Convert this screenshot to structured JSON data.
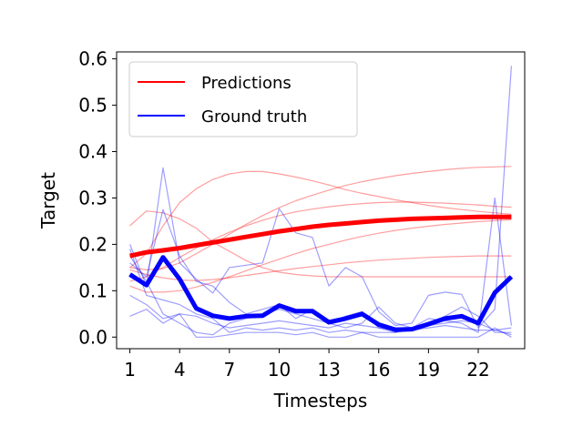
{
  "chart_data": {
    "type": "line",
    "xlabel": "Timesteps",
    "ylabel": "Target",
    "xlim": [
      0.2,
      24.8
    ],
    "ylim": [
      -0.025,
      0.615
    ],
    "xticks": [
      1,
      4,
      7,
      10,
      13,
      16,
      19,
      22
    ],
    "yticks": [
      0.0,
      0.1,
      0.2,
      0.3,
      0.4,
      0.5,
      0.6
    ],
    "ytick_labels": [
      "0.0",
      "0.1",
      "0.2",
      "0.3",
      "0.4",
      "0.5",
      "0.6"
    ],
    "grid": false,
    "legend": {
      "placement": "top-left",
      "entries": [
        {
          "label": "Predictions",
          "color": "#ff0000"
        },
        {
          "label": "Ground truth",
          "color": "#0000ff"
        }
      ]
    },
    "x": [
      1,
      2,
      3,
      4,
      5,
      6,
      7,
      8,
      9,
      10,
      11,
      12,
      13,
      14,
      15,
      16,
      17,
      18,
      19,
      20,
      21,
      22,
      23,
      24
    ],
    "mean_prediction": {
      "legend_group": "Predictions",
      "color": "#ff0000",
      "values": [
        0.175,
        0.183,
        0.187,
        0.192,
        0.198,
        0.204,
        0.21,
        0.216,
        0.222,
        0.228,
        0.233,
        0.238,
        0.242,
        0.245,
        0.248,
        0.251,
        0.253,
        0.255,
        0.256,
        0.257,
        0.258,
        0.259,
        0.259,
        0.259
      ]
    },
    "mean_ground_truth": {
      "legend_group": "Ground truth",
      "color": "#0000ff",
      "values": [
        0.135,
        0.112,
        0.172,
        0.125,
        0.062,
        0.046,
        0.04,
        0.045,
        0.046,
        0.068,
        0.056,
        0.056,
        0.032,
        0.04,
        0.05,
        0.027,
        0.016,
        0.017,
        0.028,
        0.04,
        0.045,
        0.03,
        0.096,
        0.13
      ]
    },
    "prediction_samples": [
      {
        "values": [
          0.24,
          0.272,
          0.268,
          0.255,
          0.235,
          0.205,
          0.185,
          0.165,
          0.15,
          0.14,
          0.135,
          0.132,
          0.13,
          0.13,
          0.13,
          0.13,
          0.13,
          0.13,
          0.13,
          0.13,
          0.13,
          0.13,
          0.13,
          0.13
        ]
      },
      {
        "values": [
          0.15,
          0.18,
          0.24,
          0.29,
          0.32,
          0.34,
          0.352,
          0.357,
          0.357,
          0.352,
          0.345,
          0.337,
          0.328,
          0.318,
          0.31,
          0.303,
          0.296,
          0.29,
          0.284,
          0.279,
          0.275,
          0.271,
          0.268,
          0.265
        ]
      },
      {
        "values": [
          0.15,
          0.145,
          0.148,
          0.16,
          0.18,
          0.2,
          0.222,
          0.243,
          0.262,
          0.279,
          0.294,
          0.306,
          0.317,
          0.327,
          0.335,
          0.342,
          0.348,
          0.353,
          0.357,
          0.361,
          0.364,
          0.366,
          0.367,
          0.368
        ]
      },
      {
        "values": [
          0.12,
          0.13,
          0.15,
          0.172,
          0.192,
          0.21,
          0.226,
          0.24,
          0.252,
          0.262,
          0.27,
          0.276,
          0.281,
          0.285,
          0.288,
          0.29,
          0.291,
          0.291,
          0.29,
          0.289,
          0.287,
          0.285,
          0.282,
          0.28
        ]
      },
      {
        "values": [
          0.11,
          0.097,
          0.097,
          0.1,
          0.108,
          0.118,
          0.13,
          0.143,
          0.156,
          0.168,
          0.18,
          0.191,
          0.2,
          0.209,
          0.217,
          0.224,
          0.23,
          0.235,
          0.239,
          0.243,
          0.246,
          0.249,
          0.251,
          0.253
        ]
      },
      {
        "values": [
          0.145,
          0.135,
          0.128,
          0.123,
          0.122,
          0.124,
          0.128,
          0.133,
          0.138,
          0.143,
          0.148,
          0.152,
          0.156,
          0.16,
          0.163,
          0.166,
          0.168,
          0.17,
          0.172,
          0.173,
          0.174,
          0.175,
          0.175,
          0.175
        ]
      }
    ],
    "ground_truth_samples": [
      {
        "values": [
          0.2,
          0.11,
          0.365,
          0.16,
          0.125,
          0.095,
          0.15,
          0.155,
          0.16,
          0.277,
          0.225,
          0.215,
          0.11,
          0.15,
          0.13,
          0.055,
          0.025,
          0.03,
          0.09,
          0.097,
          0.092,
          0.02,
          0.06,
          0.585
        ]
      },
      {
        "values": [
          0.16,
          0.13,
          0.275,
          0.175,
          0.12,
          0.11,
          0.075,
          0.05,
          0.06,
          0.07,
          0.04,
          0.06,
          0.03,
          0.045,
          0.055,
          0.02,
          0.01,
          0.02,
          0.04,
          0.035,
          0.03,
          0.01,
          0.3,
          0.025
        ]
      },
      {
        "values": [
          0.045,
          0.06,
          0.03,
          0.05,
          0.0,
          0.0,
          0.005,
          0.01,
          0.01,
          0.01,
          0.005,
          0.01,
          0.0,
          0.0,
          0.01,
          0.0,
          0.0,
          0.0,
          0.0,
          0.0,
          0.0,
          0.0,
          0.02,
          0.0
        ]
      },
      {
        "values": [
          0.175,
          0.12,
          0.05,
          0.03,
          0.01,
          0.005,
          0.03,
          0.04,
          0.05,
          0.06,
          0.05,
          0.04,
          0.03,
          0.02,
          0.03,
          0.065,
          0.03,
          0.02,
          0.03,
          0.045,
          0.065,
          0.045,
          0.01,
          0.01
        ]
      },
      {
        "values": [
          0.19,
          0.09,
          0.08,
          0.07,
          0.05,
          0.04,
          0.01,
          0.02,
          0.015,
          0.02,
          0.015,
          0.02,
          0.01,
          0.015,
          0.01,
          0.01,
          0.01,
          0.015,
          0.02,
          0.025,
          0.02,
          0.015,
          0.015,
          0.005
        ]
      },
      {
        "values": [
          0.09,
          0.07,
          0.04,
          0.05,
          0.045,
          0.03,
          0.02,
          0.025,
          0.03,
          0.035,
          0.03,
          0.025,
          0.02,
          0.03,
          0.025,
          0.02,
          0.015,
          0.02,
          0.025,
          0.03,
          0.035,
          0.03,
          0.015,
          0.02
        ]
      }
    ]
  }
}
